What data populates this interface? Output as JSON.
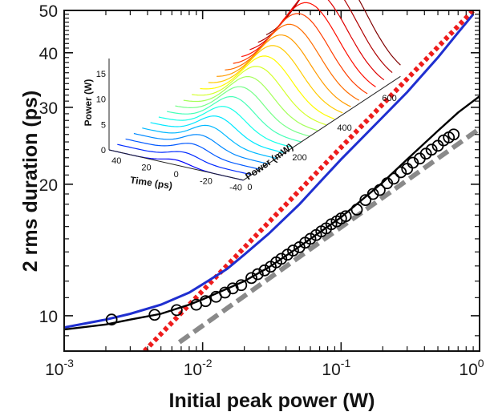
{
  "chart_data": [
    {
      "type": "line",
      "title": "",
      "xlabel": "Initial peak power (W)",
      "ylabel": "2  rms duration (ps)",
      "xscale": "log",
      "yscale": "log",
      "xlim": [
        0.001,
        1
      ],
      "ylim": [
        8.3,
        50
      ],
      "x_ticks": [
        0.001,
        0.01,
        0.1,
        1
      ],
      "x_tick_labels": [
        {
          "base": "10",
          "exp": "-3"
        },
        {
          "base": "10",
          "exp": "-2"
        },
        {
          "base": "10",
          "exp": "-1"
        },
        {
          "base": "10",
          "exp": "0"
        }
      ],
      "y_ticks": [
        10,
        20,
        30,
        40,
        50
      ],
      "y_tick_labels": [
        "10",
        "20",
        "30",
        "40",
        "50"
      ],
      "grid": false,
      "legend": "none",
      "series": [
        {
          "style": "markers",
          "marker": "circle-open",
          "color": "#000000",
          "points": [
            [
              0.0022,
              9.8
            ],
            [
              0.0045,
              10.05
            ],
            [
              0.0065,
              10.3
            ],
            [
              0.009,
              10.6
            ],
            [
              0.0105,
              10.8
            ],
            [
              0.0125,
              11.05
            ],
            [
              0.0145,
              11.3
            ],
            [
              0.0165,
              11.55
            ],
            [
              0.019,
              11.75
            ],
            [
              0.0225,
              12.2
            ],
            [
              0.025,
              12.45
            ],
            [
              0.028,
              12.7
            ],
            [
              0.031,
              12.95
            ],
            [
              0.034,
              13.25
            ],
            [
              0.037,
              13.5
            ],
            [
              0.041,
              13.8
            ],
            [
              0.045,
              14.1
            ],
            [
              0.05,
              14.35
            ],
            [
              0.055,
              14.7
            ],
            [
              0.06,
              15.0
            ],
            [
              0.066,
              15.3
            ],
            [
              0.072,
              15.6
            ],
            [
              0.078,
              15.85
            ],
            [
              0.085,
              16.2
            ],
            [
              0.093,
              16.45
            ],
            [
              0.1,
              16.7
            ],
            [
              0.108,
              16.9
            ],
            [
              0.13,
              17.5
            ],
            [
              0.15,
              18.4
            ],
            [
              0.17,
              19.0
            ],
            [
              0.19,
              19.4
            ],
            [
              0.215,
              20.1
            ],
            [
              0.24,
              20.6
            ],
            [
              0.27,
              21.3
            ],
            [
              0.3,
              21.7
            ],
            [
              0.33,
              22.4
            ],
            [
              0.37,
              22.9
            ],
            [
              0.41,
              23.5
            ],
            [
              0.45,
              24.0
            ],
            [
              0.5,
              24.5
            ],
            [
              0.55,
              25.2
            ],
            [
              0.6,
              25.6
            ],
            [
              0.65,
              26.0
            ]
          ]
        },
        {
          "style": "solid",
          "color": "#000000",
          "points": [
            [
              0.001,
              9.3
            ],
            [
              0.002,
              9.55
            ],
            [
              0.003,
              9.8
            ],
            [
              0.005,
              10.1
            ],
            [
              0.008,
              10.6
            ],
            [
              0.01,
              10.9
            ],
            [
              0.02,
              12.0
            ],
            [
              0.03,
              12.9
            ],
            [
              0.05,
              14.4
            ],
            [
              0.1,
              16.8
            ],
            [
              0.2,
              20.2
            ],
            [
              0.3,
              22.8
            ],
            [
              0.5,
              26.5
            ],
            [
              0.7,
              29.2
            ],
            [
              1.0,
              31.8
            ]
          ]
        },
        {
          "style": "solid",
          "color": "#1f2fd0",
          "points": [
            [
              0.001,
              9.4
            ],
            [
              0.002,
              9.8
            ],
            [
              0.003,
              10.1
            ],
            [
              0.005,
              10.6
            ],
            [
              0.008,
              11.3
            ],
            [
              0.01,
              11.8
            ],
            [
              0.015,
              12.8
            ],
            [
              0.02,
              13.8
            ],
            [
              0.03,
              15.4
            ],
            [
              0.05,
              18.0
            ],
            [
              0.07,
              20.2
            ],
            [
              0.1,
              22.8
            ],
            [
              0.2,
              28.5
            ],
            [
              0.3,
              32.5
            ],
            [
              0.5,
              39.0
            ],
            [
              0.7,
              44.5
            ],
            [
              0.9,
              49.0
            ]
          ]
        },
        {
          "style": "dotted",
          "color": "#ee1c1c",
          "points": [
            [
              0.0038,
              8.3
            ],
            [
              0.9,
              50
            ]
          ]
        },
        {
          "style": "dashed",
          "color": "#8a8a8a",
          "points": [
            [
              0.0068,
              8.7
            ],
            [
              1.0,
              26.8
            ]
          ]
        }
      ]
    },
    {
      "type": "surface-3d",
      "title": "",
      "xlabel": "Time (ps)",
      "ylabel": "Power (mW)",
      "zlabel": "Power (W)",
      "time_ticks": [
        "40",
        "20",
        "0",
        "-20",
        "-40"
      ],
      "power_ticks": [
        "0",
        "200",
        "400",
        "600"
      ],
      "z_ticks": [
        "0",
        "5",
        "10",
        "15"
      ],
      "zlim": [
        0,
        18
      ],
      "time_range": [
        -45,
        45
      ],
      "power_range": [
        0,
        700
      ],
      "curves": 20,
      "colormap": "jet"
    }
  ]
}
